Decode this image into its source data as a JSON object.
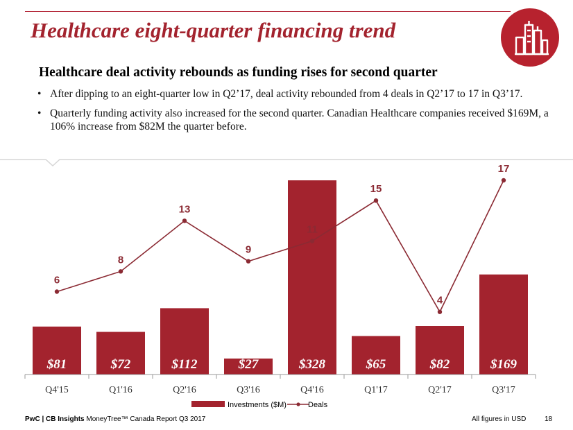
{
  "header": {
    "title": "Healthcare eight-quarter financing trend",
    "subtitle": "Healthcare deal activity rebounds as funding rises for second quarter"
  },
  "bullets": [
    "After dipping to an eight-quarter low in Q2’17, deal activity rebounded from 4 deals in Q2’17 to 17 in Q3’17.",
    "Quarterly funding activity also increased for the second quarter. Canadian Healthcare companies received $169M, a 106% increase from $82M the quarter before."
  ],
  "bullet_symbol": "•",
  "colors": {
    "brand": "#a3232e",
    "bar": "#a3232e",
    "line": "#8b2a33"
  },
  "icons": {
    "badge": "factory-buildings-icon"
  },
  "chart_data": {
    "type": "bar",
    "categories": [
      "Q4'15",
      "Q1'16",
      "Q2'16",
      "Q3'16",
      "Q4'16",
      "Q1'17",
      "Q2'17",
      "Q3'17"
    ],
    "series": [
      {
        "name": "Investments ($M)",
        "type": "bar",
        "values": [
          81,
          72,
          112,
          27,
          328,
          65,
          82,
          169
        ],
        "labels": [
          "$81",
          "$72",
          "$112",
          "$27",
          "$328",
          "$65",
          "$82",
          "$169"
        ]
      },
      {
        "name": "Deals",
        "type": "line",
        "values": [
          6,
          8,
          13,
          9,
          11,
          15,
          4,
          17
        ]
      }
    ],
    "legend_position": "bottom",
    "grid": false
  },
  "footer": {
    "source_bold": "PwC | CB Insights",
    "source_rest": " MoneyTree™ Canada Report Q3 2017",
    "note": "All figures in USD",
    "page": "18"
  }
}
